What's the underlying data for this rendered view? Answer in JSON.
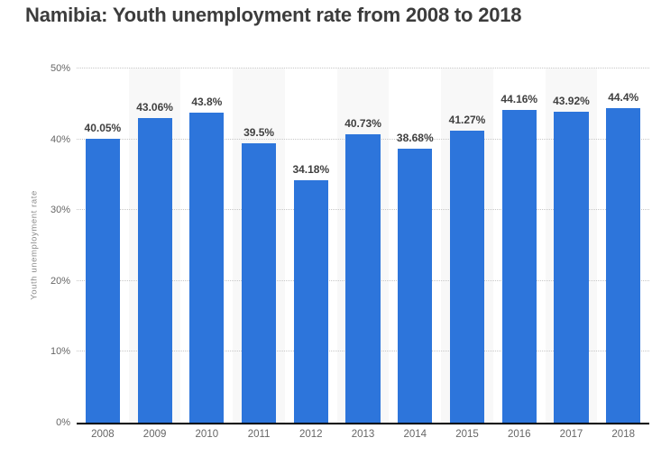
{
  "chart_data": {
    "type": "bar",
    "title": "Namibia: Youth unemployment rate from 2008 to 2018",
    "categories": [
      "2008",
      "2009",
      "2010",
      "2011",
      "2012",
      "2013",
      "2014",
      "2015",
      "2016",
      "2017",
      "2018"
    ],
    "values": [
      40.05,
      43.06,
      43.8,
      39.5,
      34.18,
      40.73,
      38.68,
      41.27,
      44.16,
      43.92,
      44.4
    ],
    "value_labels": [
      "40.05%",
      "43.06%",
      "43.8%",
      "39.5%",
      "34.18%",
      "40.73%",
      "38.68%",
      "41.27%",
      "44.16%",
      "43.92%",
      "44.4%"
    ],
    "xlabel": "",
    "ylabel": "Youth unemployment rate",
    "ylim": [
      0,
      50
    ],
    "yticks": [
      "0%",
      "10%",
      "20%",
      "30%",
      "40%",
      "50%"
    ],
    "grid": "horizontal dotted lines at each 10% tick, solid axis line at 0%",
    "legend_position": "none",
    "background_stripes": "alternating light column bands behind every second category",
    "colors": {
      "bar": "#2d75db",
      "stripe": "#f8f8f8",
      "gridline": "#c7c7c7",
      "axis_line": "#000000",
      "title_text": "#3c3c3c",
      "value_label_text": "#404040",
      "tick_text": "#666666",
      "y_axis_title_text": "#8a8a8a"
    }
  }
}
